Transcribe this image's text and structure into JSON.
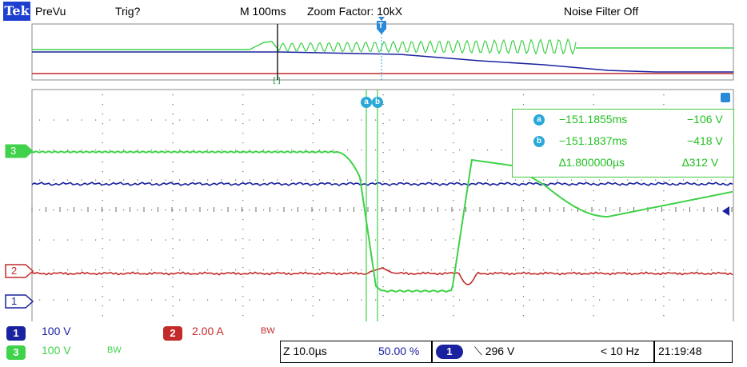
{
  "header": {
    "brand": "Tek",
    "mode": "PreVu",
    "trigger_status": "Trig?",
    "timebase": "M 100ms",
    "zoom_factor": "Zoom Factor: 10kX",
    "noise_filter": "Noise Filter Off"
  },
  "overview": {
    "zoom_marker": "[]",
    "trigger_marker": "T"
  },
  "markers": {
    "ch3": "3",
    "ch2": "2",
    "ch1": "1",
    "cursor_a": "a",
    "cursor_b": "b",
    "right_arrow": "▸"
  },
  "readout": {
    "a_time": "−151.1855ms",
    "a_value": "−106 V",
    "b_time": "−151.1837ms",
    "b_value": "−418 V",
    "delta_time": "∆1.800000µs",
    "delta_value": "∆312 V"
  },
  "status": {
    "ch1_num": "1",
    "ch1_scale": "100 V",
    "ch2_num": "2",
    "ch2_scale": "2.00 A",
    "ch2_bw": "BW",
    "ch3_num": "3",
    "ch3_scale": "100 V",
    "ch3_bw": "BW",
    "zoom_scale": "Z 10.0µs",
    "position": "50.00 %",
    "trigger_ch": "1",
    "trigger_level": "⟍ 296 V",
    "trigger_freq": "< 10 Hz",
    "time": "21:19:48"
  },
  "colors": {
    "ch1": "#1a22a0",
    "ch2": "#c42a2a",
    "ch3": "#3fd24a",
    "cursor": "#2aa8d8"
  }
}
